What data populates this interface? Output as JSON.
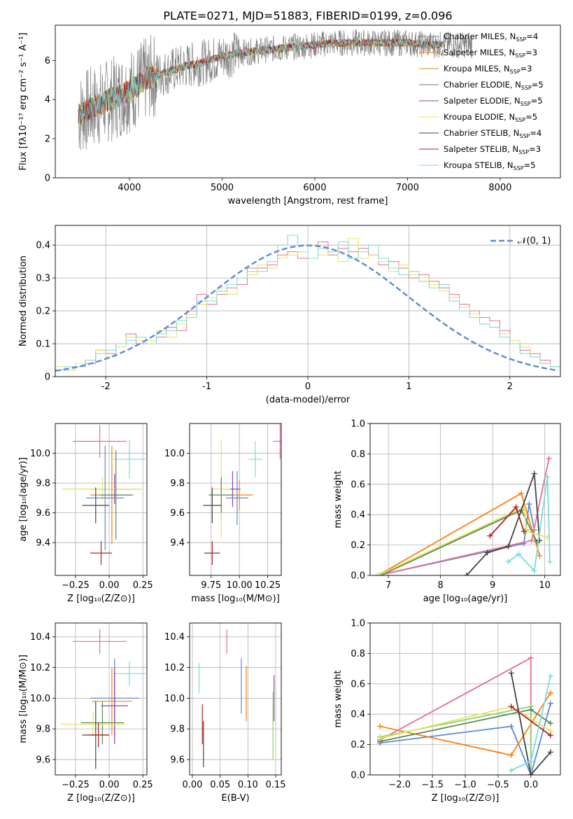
{
  "title": "PLATE=0271, MJD=51883, FIBERID=0199, z=0.096",
  "colors": {
    "grid": "#b0b0b0",
    "spectrum_obs": "#808080",
    "normal_curve": "#5b8bd6",
    "series_palette": [
      "#5b8bd6",
      "#ff7f0e",
      "#e76f8f",
      "#8bd46f",
      "#8e44ad",
      "#e8e35c",
      "#444444",
      "#b22222",
      "#7fdada",
      "#d98a2b"
    ]
  },
  "chart_data": [
    {
      "id": "spectrum",
      "type": "line",
      "title": "PLATE=0271, MJD=51883, FIBERID=0199, z=0.096",
      "xlabel": "wavelength [Angstrom, rest frame]",
      "ylabel": "Flux [fλ10⁻¹⁷ erg cm⁻² s⁻¹ A⁻¹]",
      "xlim": [
        3200,
        8650
      ],
      "ylim": [
        0,
        7.8
      ],
      "xticks": [
        4000,
        5000,
        6000,
        7000,
        8000
      ],
      "yticks": [
        0,
        2,
        4,
        6
      ],
      "grid": false,
      "legend_position": "right",
      "legend": [
        {
          "label": "Chabrier MILES, N",
          "sub": "SSP",
          "suffix": "=4",
          "color": "#808080"
        },
        {
          "label": "Salpeter MILES, N",
          "sub": "SSP",
          "suffix": "=3",
          "color": "#ff7f0e"
        },
        {
          "label": "Kroupa MILES, N",
          "sub": "SSP",
          "suffix": "=3",
          "color": "#d98a2b"
        },
        {
          "label": "Chabrier ELODIE, N",
          "sub": "SSP",
          "suffix": "=5",
          "color": "#5a8a5a"
        },
        {
          "label": "Salpeter ELODIE, N",
          "sub": "SSP",
          "suffix": "=5",
          "color": "#8e44ad"
        },
        {
          "label": "Kroupa ELODIE, N",
          "sub": "SSP",
          "suffix": "=5",
          "color": "#e8e35c"
        },
        {
          "label": "Chabrier STELIB, N",
          "sub": "SSP",
          "suffix": "=4",
          "color": "#444444"
        },
        {
          "label": "Salpeter STELIB, N",
          "sub": "SSP",
          "suffix": "=3",
          "color": "#b22222"
        },
        {
          "label": "Kroupa STELIB, N",
          "sub": "SSP",
          "suffix": "=5",
          "color": "#7fdada"
        }
      ],
      "model_curve_x": [
        3450,
        3600,
        3750,
        3900,
        4050,
        4200,
        4400,
        4600,
        4800,
        5000,
        5200,
        5400,
        5600,
        5800,
        6000,
        6200,
        6400,
        6600,
        6800,
        7000,
        7200,
        7400
      ],
      "model_curve_y": [
        3.2,
        3.6,
        3.9,
        4.2,
        4.6,
        5.1,
        5.4,
        5.7,
        5.9,
        6.2,
        6.4,
        6.5,
        6.6,
        6.7,
        6.8,
        6.9,
        6.9,
        6.9,
        6.9,
        6.9,
        6.8,
        6.8
      ]
    },
    {
      "id": "residual_hist",
      "type": "area",
      "xlabel": "(data-model)/error",
      "ylabel": "Normed distribution",
      "xlim": [
        -2.5,
        2.5
      ],
      "ylim": [
        0,
        0.46
      ],
      "xticks": [
        -2,
        -1,
        0,
        1,
        2
      ],
      "yticks": [
        0.0,
        0.1,
        0.2,
        0.3,
        0.4
      ],
      "grid": true,
      "legend_position": "top-right",
      "legend": [
        {
          "label": "𝒩(0, 1)",
          "color": "#5b8bd6",
          "dashed": true
        }
      ],
      "normal_curve": {
        "mean": 0,
        "sigma": 1
      },
      "bin_width": 0.1,
      "bin_start": -2.5,
      "histograms": [
        [
          0.02,
          0.02,
          0.03,
          0.04,
          0.08,
          0.07,
          0.1,
          0.13,
          0.1,
          0.1,
          0.12,
          0.15,
          0.14,
          0.2,
          0.25,
          0.22,
          0.25,
          0.27,
          0.28,
          0.33,
          0.33,
          0.34,
          0.37,
          0.38,
          0.36,
          0.4,
          0.41,
          0.37,
          0.39,
          0.38,
          0.39,
          0.37,
          0.34,
          0.35,
          0.33,
          0.3,
          0.31,
          0.29,
          0.27,
          0.25,
          0.22,
          0.2,
          0.18,
          0.17,
          0.14,
          0.1,
          0.08,
          0.07,
          0.05,
          0.03
        ],
        [
          0.03,
          0.02,
          0.04,
          0.05,
          0.08,
          0.06,
          0.09,
          0.12,
          0.11,
          0.11,
          0.14,
          0.12,
          0.16,
          0.19,
          0.22,
          0.24,
          0.27,
          0.25,
          0.3,
          0.31,
          0.34,
          0.33,
          0.36,
          0.37,
          0.38,
          0.4,
          0.37,
          0.38,
          0.35,
          0.42,
          0.36,
          0.37,
          0.35,
          0.32,
          0.34,
          0.31,
          0.3,
          0.28,
          0.26,
          0.24,
          0.21,
          0.19,
          0.16,
          0.15,
          0.13,
          0.11,
          0.09,
          0.06,
          0.04,
          0.03
        ],
        [
          0.02,
          0.03,
          0.03,
          0.05,
          0.07,
          0.08,
          0.1,
          0.11,
          0.12,
          0.1,
          0.13,
          0.14,
          0.17,
          0.18,
          0.23,
          0.23,
          0.26,
          0.28,
          0.3,
          0.32,
          0.32,
          0.35,
          0.4,
          0.43,
          0.4,
          0.36,
          0.39,
          0.38,
          0.41,
          0.36,
          0.38,
          0.4,
          0.36,
          0.33,
          0.31,
          0.32,
          0.29,
          0.27,
          0.28,
          0.23,
          0.2,
          0.18,
          0.16,
          0.15,
          0.12,
          0.1,
          0.07,
          0.06,
          0.04,
          0.03
        ]
      ]
    },
    {
      "id": "age_vs_Z",
      "type": "scatter",
      "xlabel": "Z [log₁₀(Z/Z⊙)]",
      "ylabel": "age  [log₁₀(age/yr)]",
      "xlim": [
        -0.4,
        0.28
      ],
      "ylim": [
        9.18,
        10.2
      ],
      "xticks": [
        -0.25,
        0.0,
        0.25
      ],
      "xticklabels": [
        "−0.25",
        "0.00",
        "0.25"
      ],
      "yticks": [
        9.4,
        9.6,
        9.8,
        10.0
      ],
      "yticklabels": [
        "9.4",
        "9.6",
        "9.8",
        "10.0"
      ],
      "grid": true,
      "points": [
        {
          "x": -0.07,
          "y": 10.08,
          "xerr": 0.2,
          "yerr": 0.11,
          "color": "#e76f8f"
        },
        {
          "x": 0.15,
          "y": 9.96,
          "xerr": 0.12,
          "yerr": 0.13,
          "color": "#7fdada"
        },
        {
          "x": 0.04,
          "y": 9.76,
          "xerr": 0.18,
          "yerr": 0.1,
          "color": "#8e44ad"
        },
        {
          "x": -0.05,
          "y": 9.76,
          "xerr": 0.3,
          "yerr": 0.08,
          "color": "#e8e35c"
        },
        {
          "x": 0.02,
          "y": 9.72,
          "xerr": 0.16,
          "yerr": 0.33,
          "color": "#ff7f0e"
        },
        {
          "x": 0.05,
          "y": 9.72,
          "xerr": 0.12,
          "yerr": 0.3,
          "color": "#5a8a5a"
        },
        {
          "x": -0.03,
          "y": 9.7,
          "xerr": 0.14,
          "yerr": 0.35,
          "color": "#5b8bd6"
        },
        {
          "x": -0.1,
          "y": 9.65,
          "xerr": 0.1,
          "yerr": 0.12,
          "color": "#444444"
        },
        {
          "x": -0.06,
          "y": 9.33,
          "xerr": 0.08,
          "yerr": 0.08,
          "color": "#b22222"
        }
      ]
    },
    {
      "id": "age_vs_mass",
      "type": "scatter",
      "xlabel": "mass [log₁₀(M/M⊙)]",
      "ylabel": "",
      "xlim": [
        9.56,
        10.37
      ],
      "ylim": [
        9.18,
        10.2
      ],
      "xticks": [
        9.75,
        10.0,
        10.25
      ],
      "xticklabels": [
        "9.75",
        "10.00",
        "10.25"
      ],
      "yticks": [
        9.4,
        9.6,
        9.8,
        10.0
      ],
      "yticklabels": [
        "9.4",
        "9.6",
        "9.8",
        "10.0"
      ],
      "grid": true,
      "points": [
        {
          "x": 10.36,
          "y": 10.08,
          "xerr": 0.06,
          "yerr": 0.12,
          "color": "#e76f8f"
        },
        {
          "x": 10.14,
          "y": 9.96,
          "xerr": 0.06,
          "yerr": 0.12,
          "color": "#7fdada"
        },
        {
          "x": 9.94,
          "y": 9.76,
          "xerr": 0.07,
          "yerr": 0.12,
          "color": "#8e44ad"
        },
        {
          "x": 9.84,
          "y": 9.76,
          "xerr": 0.08,
          "yerr": 0.33,
          "color": "#e8e35c"
        },
        {
          "x": 10.0,
          "y": 9.72,
          "xerr": 0.12,
          "yerr": 0.1,
          "color": "#ff7f0e"
        },
        {
          "x": 9.84,
          "y": 9.72,
          "xerr": 0.11,
          "yerr": 0.12,
          "color": "#5a8a5a"
        },
        {
          "x": 9.98,
          "y": 9.7,
          "xerr": 0.1,
          "yerr": 0.18,
          "color": "#5b8bd6"
        },
        {
          "x": 9.76,
          "y": 9.65,
          "xerr": 0.08,
          "yerr": 0.12,
          "color": "#444444"
        },
        {
          "x": 9.76,
          "y": 9.33,
          "xerr": 0.07,
          "yerr": 0.08,
          "color": "#b22222"
        }
      ]
    },
    {
      "id": "weight_vs_age",
      "type": "line",
      "xlabel": "age  [log₁₀(age/yr)]",
      "ylabel": "mass weight",
      "xlim": [
        6.65,
        10.3
      ],
      "ylim": [
        0,
        1
      ],
      "xticks": [
        7,
        8,
        9,
        10
      ],
      "yticks": [
        0.0,
        0.2,
        0.4,
        0.6,
        0.8,
        1.0
      ],
      "yticklabels": [
        "0.0",
        "0.2",
        "0.4",
        "0.6",
        "0.8",
        "1.0"
      ],
      "grid": true,
      "series": [
        {
          "color": "#5b8bd6",
          "x": [
            6.8,
            9.6,
            9.7,
            9.8
          ],
          "y": [
            0.0,
            0.21,
            0.47,
            0.3
          ]
        },
        {
          "color": "#ff7f0e",
          "x": [
            6.8,
            9.55,
            9.9
          ],
          "y": [
            0.0,
            0.54,
            0.13
          ]
        },
        {
          "color": "#e76f8f",
          "x": [
            6.8,
            9.75,
            10.08
          ],
          "y": [
            0.0,
            0.23,
            0.77
          ]
        },
        {
          "color": "#8bd46f",
          "x": [
            6.85,
            9.6,
            9.65
          ],
          "y": [
            0.0,
            0.45,
            0.3
          ]
        },
        {
          "color": "#5a8a5a",
          "x": [
            6.85,
            9.55,
            9.85
          ],
          "y": [
            0.0,
            0.43,
            0.22
          ]
        },
        {
          "color": "#e8e35c",
          "x": [
            6.8,
            9.6,
            9.65,
            10.05
          ],
          "y": [
            0.0,
            0.45,
            0.29,
            0.25
          ]
        },
        {
          "color": "#444444",
          "x": [
            8.5,
            8.9,
            9.3,
            9.8,
            9.9
          ],
          "y": [
            0.0,
            0.15,
            0.19,
            0.67,
            0.23
          ]
        },
        {
          "color": "#b22222",
          "x": [
            8.95,
            9.45,
            9.6
          ],
          "y": [
            0.26,
            0.45,
            0.29
          ]
        },
        {
          "color": "#7fdada",
          "x": [
            9.3,
            9.5,
            9.8,
            10.05,
            10.1
          ],
          "y": [
            0.09,
            0.14,
            0.03,
            0.65,
            0.09
          ]
        }
      ]
    },
    {
      "id": "mass_vs_Z",
      "type": "scatter",
      "xlabel": "Z [log₁₀(Z/Z⊙)]",
      "ylabel": "mass [log₁₀(M/M⊙)]",
      "xlim": [
        -0.4,
        0.28
      ],
      "ylim": [
        9.5,
        10.49
      ],
      "xticks": [
        -0.25,
        0.0,
        0.25
      ],
      "xticklabels": [
        "−0.25",
        "0.00",
        "0.25"
      ],
      "yticks": [
        9.6,
        9.8,
        10.0,
        10.2,
        10.4
      ],
      "yticklabels": [
        "9.6",
        "9.8",
        "10.0",
        "10.2",
        "10.4"
      ],
      "grid": true,
      "points": [
        {
          "x": -0.07,
          "y": 10.37,
          "xerr": 0.2,
          "yerr": 0.08,
          "color": "#e76f8f"
        },
        {
          "x": 0.15,
          "y": 10.16,
          "xerr": 0.12,
          "yerr": 0.08,
          "color": "#7fdada"
        },
        {
          "x": 0.04,
          "y": 10.0,
          "xerr": 0.18,
          "yerr": 0.26,
          "color": "#5b8bd6"
        },
        {
          "x": 0.02,
          "y": 9.98,
          "xerr": 0.15,
          "yerr": 0.22,
          "color": "#ff7f0e"
        },
        {
          "x": 0.04,
          "y": 9.95,
          "xerr": 0.1,
          "yerr": 0.25,
          "color": "#8e44ad"
        },
        {
          "x": -0.05,
          "y": 9.84,
          "xerr": 0.16,
          "yerr": 0.14,
          "color": "#5a8a5a"
        },
        {
          "x": -0.12,
          "y": 9.83,
          "xerr": 0.24,
          "yerr": 0.08,
          "color": "#e8e35c"
        },
        {
          "x": -0.1,
          "y": 9.76,
          "xerr": 0.1,
          "yerr": 0.22,
          "color": "#444444"
        },
        {
          "x": -0.08,
          "y": 9.76,
          "xerr": 0.08,
          "yerr": 0.08,
          "color": "#b22222"
        }
      ]
    },
    {
      "id": "mass_vs_ebv",
      "type": "scatter",
      "xlabel": "E(B-V)",
      "ylabel": "",
      "xlim": [
        -0.005,
        0.16
      ],
      "ylim": [
        9.5,
        10.49
      ],
      "xticks": [
        0.0,
        0.05,
        0.1,
        0.15
      ],
      "xticklabels": [
        "0.00",
        "0.05",
        "0.10",
        "0.15"
      ],
      "yticks": [
        9.6,
        9.8,
        10.0,
        10.2,
        10.4
      ],
      "yticklabels": [
        "9.6",
        "9.8",
        "10.0",
        "10.2",
        "10.4"
      ],
      "grid": true,
      "points": [
        {
          "x": 0.062,
          "y": 10.37,
          "xerr": 0,
          "yerr": 0.08,
          "color": "#e76f8f"
        },
        {
          "x": 0.012,
          "y": 10.13,
          "xerr": 0,
          "yerr": 0.1,
          "color": "#7fdada"
        },
        {
          "x": 0.088,
          "y": 10.08,
          "xerr": 0,
          "yerr": 0.18,
          "color": "#5b8bd6"
        },
        {
          "x": 0.097,
          "y": 10.03,
          "xerr": 0,
          "yerr": 0.18,
          "color": "#ff7f0e"
        },
        {
          "x": 0.147,
          "y": 10.0,
          "xerr": 0,
          "yerr": 0.15,
          "color": "#8e44ad"
        },
        {
          "x": 0.145,
          "y": 9.82,
          "xerr": 0,
          "yerr": 0.22,
          "color": "#8bd46f"
        },
        {
          "x": 0.018,
          "y": 9.83,
          "xerr": 0,
          "yerr": 0.13,
          "color": "#b22222"
        },
        {
          "x": 0.02,
          "y": 9.7,
          "xerr": 0,
          "yerr": 0.15,
          "color": "#444444"
        }
      ]
    },
    {
      "id": "weight_vs_Z",
      "type": "line",
      "xlabel": "Z [log₁₀(Z/Z⊙)]",
      "ylabel": "mass weight",
      "xlim": [
        -2.45,
        0.45
      ],
      "ylim": [
        0,
        1
      ],
      "xticks": [
        -2.0,
        -1.5,
        -1.0,
        -0.5,
        0.0
      ],
      "xticklabels": [
        "−2.0",
        "−1.5",
        "−1.0",
        "−0.5",
        "0.0"
      ],
      "yticks": [
        0.0,
        0.2,
        0.4,
        0.6,
        0.8,
        1.0
      ],
      "yticklabels": [
        "0.0",
        "0.2",
        "0.4",
        "0.6",
        "0.8",
        "1.0"
      ],
      "grid": true,
      "series": [
        {
          "color": "#5b8bd6",
          "x": [
            -2.3,
            -0.3,
            0.0,
            0.3
          ],
          "y": [
            0.21,
            0.32,
            0.0,
            0.47
          ]
        },
        {
          "color": "#ff7f0e",
          "x": [
            -2.3,
            -0.3,
            0.3
          ],
          "y": [
            0.32,
            0.13,
            0.54
          ]
        },
        {
          "color": "#e76f8f",
          "x": [
            -2.3,
            0.0,
            0.0
          ],
          "y": [
            0.23,
            0.77,
            0.0
          ]
        },
        {
          "color": "#8bd46f",
          "x": [
            -2.3,
            0.0,
            0.0
          ],
          "y": [
            0.25,
            0.45,
            0.0
          ]
        },
        {
          "color": "#5a8a5a",
          "x": [
            -2.3,
            0.0,
            0.3
          ],
          "y": [
            0.22,
            0.43,
            0.34
          ]
        },
        {
          "color": "#e8e35c",
          "x": [
            -2.3,
            -0.3,
            0.3
          ],
          "y": [
            0.24,
            0.45,
            0.29
          ]
        },
        {
          "color": "#444444",
          "x": [
            -0.3,
            0.0,
            0.3
          ],
          "y": [
            0.67,
            0.0,
            0.15
          ]
        },
        {
          "color": "#b22222",
          "x": [
            -0.3,
            0.3
          ],
          "y": [
            0.45,
            0.26
          ]
        },
        {
          "color": "#7fdada",
          "x": [
            -0.3,
            0.0,
            0.3
          ],
          "y": [
            0.03,
            0.09,
            0.65
          ]
        }
      ]
    }
  ]
}
